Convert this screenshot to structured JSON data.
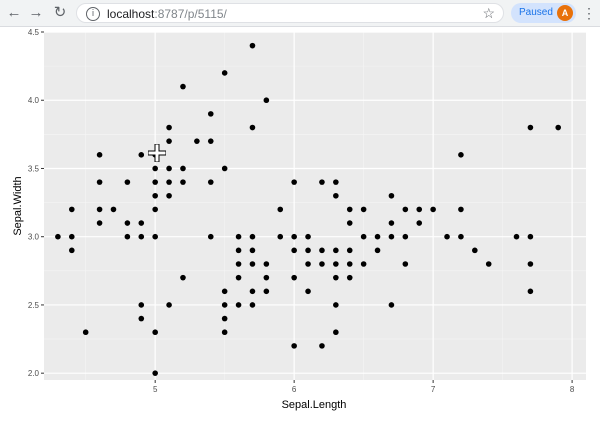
{
  "browser": {
    "back_icon": "arrow-left-icon",
    "forward_icon": "arrow-right-icon",
    "reload_icon": "reload-icon",
    "url_host": "localhost",
    "url_rest": ":8787/p/5115/",
    "profile_status": "Paused",
    "avatar_letter": "A",
    "profile_color": "#e8710a"
  },
  "chart_data": {
    "type": "scatter",
    "title": "",
    "xlabel": "Sepal.Length",
    "ylabel": "Sepal.Width",
    "xlim": [
      4.2,
      8.1
    ],
    "ylim": [
      1.95,
      4.5
    ],
    "xticks": [
      "5",
      "6",
      "7",
      "8"
    ],
    "yticks": [
      "2.0",
      "2.5",
      "3.0",
      "3.5",
      "4.0",
      "4.5"
    ],
    "grid": true,
    "background": "#ebebeb",
    "point_color": "#000000",
    "points": [
      [
        4.3,
        3.0
      ],
      [
        4.4,
        3.2
      ],
      [
        4.4,
        3.0
      ],
      [
        4.4,
        2.9
      ],
      [
        4.5,
        2.3
      ],
      [
        4.6,
        3.6
      ],
      [
        4.6,
        3.4
      ],
      [
        4.6,
        3.2
      ],
      [
        4.6,
        3.1
      ],
      [
        4.7,
        3.2
      ],
      [
        4.8,
        3.4
      ],
      [
        4.8,
        3.1
      ],
      [
        4.8,
        3.0
      ],
      [
        4.9,
        3.6
      ],
      [
        4.9,
        3.1
      ],
      [
        4.9,
        3.0
      ],
      [
        4.9,
        2.5
      ],
      [
        4.9,
        2.4
      ],
      [
        5.0,
        3.6
      ],
      [
        5.0,
        3.5
      ],
      [
        5.0,
        3.4
      ],
      [
        5.0,
        3.3
      ],
      [
        5.0,
        3.2
      ],
      [
        5.0,
        3.0
      ],
      [
        5.0,
        2.3
      ],
      [
        5.0,
        2.0
      ],
      [
        5.1,
        3.8
      ],
      [
        5.1,
        3.7
      ],
      [
        5.1,
        3.5
      ],
      [
        5.1,
        3.4
      ],
      [
        5.1,
        3.3
      ],
      [
        5.1,
        2.5
      ],
      [
        5.2,
        4.1
      ],
      [
        5.2,
        3.5
      ],
      [
        5.2,
        3.4
      ],
      [
        5.2,
        2.7
      ],
      [
        5.3,
        3.7
      ],
      [
        5.4,
        3.9
      ],
      [
        5.4,
        3.7
      ],
      [
        5.4,
        3.4
      ],
      [
        5.4,
        3.0
      ],
      [
        5.5,
        4.2
      ],
      [
        5.5,
        3.5
      ],
      [
        5.5,
        2.6
      ],
      [
        5.5,
        2.5
      ],
      [
        5.5,
        2.4
      ],
      [
        5.5,
        2.3
      ],
      [
        5.6,
        3.0
      ],
      [
        5.6,
        2.9
      ],
      [
        5.6,
        2.8
      ],
      [
        5.6,
        2.7
      ],
      [
        5.6,
        2.5
      ],
      [
        5.7,
        4.4
      ],
      [
        5.7,
        3.8
      ],
      [
        5.7,
        3.0
      ],
      [
        5.7,
        2.9
      ],
      [
        5.7,
        2.8
      ],
      [
        5.7,
        2.6
      ],
      [
        5.7,
        2.5
      ],
      [
        5.8,
        4.0
      ],
      [
        5.8,
        2.8
      ],
      [
        5.8,
        2.7
      ],
      [
        5.8,
        2.6
      ],
      [
        5.9,
        3.2
      ],
      [
        5.9,
        3.0
      ],
      [
        6.0,
        3.4
      ],
      [
        6.0,
        3.0
      ],
      [
        6.0,
        2.9
      ],
      [
        6.0,
        2.7
      ],
      [
        6.0,
        2.2
      ],
      [
        6.1,
        3.0
      ],
      [
        6.1,
        2.9
      ],
      [
        6.1,
        2.8
      ],
      [
        6.1,
        2.6
      ],
      [
        6.2,
        3.4
      ],
      [
        6.2,
        2.9
      ],
      [
        6.2,
        2.8
      ],
      [
        6.2,
        2.2
      ],
      [
        6.3,
        3.4
      ],
      [
        6.3,
        3.3
      ],
      [
        6.3,
        2.9
      ],
      [
        6.3,
        2.8
      ],
      [
        6.3,
        2.7
      ],
      [
        6.3,
        2.5
      ],
      [
        6.3,
        2.3
      ],
      [
        6.4,
        3.2
      ],
      [
        6.4,
        3.1
      ],
      [
        6.4,
        2.9
      ],
      [
        6.4,
        2.8
      ],
      [
        6.4,
        2.7
      ],
      [
        6.5,
        3.2
      ],
      [
        6.5,
        3.0
      ],
      [
        6.5,
        2.8
      ],
      [
        6.6,
        3.0
      ],
      [
        6.6,
        2.9
      ],
      [
        6.7,
        3.3
      ],
      [
        6.7,
        3.1
      ],
      [
        6.7,
        3.0
      ],
      [
        6.7,
        2.5
      ],
      [
        6.8,
        3.2
      ],
      [
        6.8,
        3.0
      ],
      [
        6.8,
        2.8
      ],
      [
        6.9,
        3.2
      ],
      [
        6.9,
        3.1
      ],
      [
        7.0,
        3.2
      ],
      [
        7.1,
        3.0
      ],
      [
        7.2,
        3.6
      ],
      [
        7.2,
        3.2
      ],
      [
        7.2,
        3.0
      ],
      [
        7.3,
        2.9
      ],
      [
        7.4,
        2.8
      ],
      [
        7.6,
        3.0
      ],
      [
        7.7,
        3.8
      ],
      [
        7.7,
        3.0
      ],
      [
        7.7,
        2.8
      ],
      [
        7.7,
        2.6
      ],
      [
        7.9,
        3.8
      ]
    ]
  }
}
